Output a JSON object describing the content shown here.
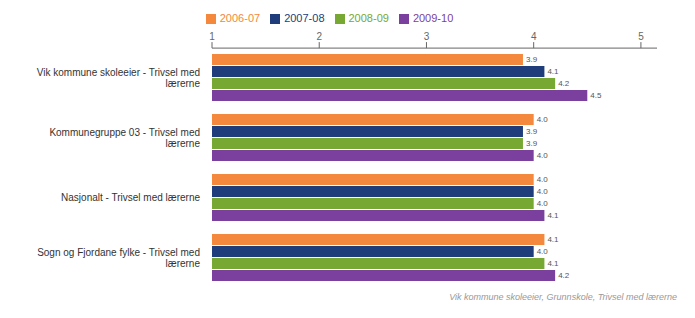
{
  "chart_data": {
    "type": "bar",
    "orientation": "horizontal",
    "categories": [
      "Vik kommune skoleeier - Trivsel med\nlærerne",
      "Kommunegruppe 03 - Trivsel med\nlærerne",
      "Nasjonalt - Trivsel med lærerne",
      "Sogn og Fjordane fylke - Trivsel med\nlærerne"
    ],
    "series": [
      {
        "name": "2006-07",
        "color": "#f4883c",
        "values": [
          3.9,
          4.0,
          4.0,
          4.1
        ],
        "value_labels": [
          "3.9",
          "4.0",
          "4.0",
          "4.1"
        ]
      },
      {
        "name": "2007-08",
        "color": "#1f3d7a",
        "values": [
          4.1,
          3.9,
          4.0,
          4.0
        ],
        "value_labels": [
          "4.1",
          "3.9",
          "4.0",
          "4.0"
        ]
      },
      {
        "name": "2008-09",
        "color": "#76a832",
        "values": [
          4.2,
          3.9,
          4.0,
          4.1
        ],
        "value_labels": [
          "4.2",
          "3.9",
          "4.0",
          "4.1"
        ]
      },
      {
        "name": "2009-10",
        "color": "#7b3f9e",
        "values": [
          4.5,
          4.0,
          4.1,
          4.2
        ],
        "value_labels": [
          "4.5",
          "4.0",
          "4.1",
          "4.2"
        ]
      }
    ],
    "xlim": [
      1,
      5.15
    ],
    "xticks": [
      1,
      2,
      3,
      4,
      5
    ],
    "grid": false,
    "legend": "top",
    "data_labels": true,
    "annotations": [
      "Vik kommune skoleeier, Grunnskole, Trivsel med lærerne"
    ]
  }
}
